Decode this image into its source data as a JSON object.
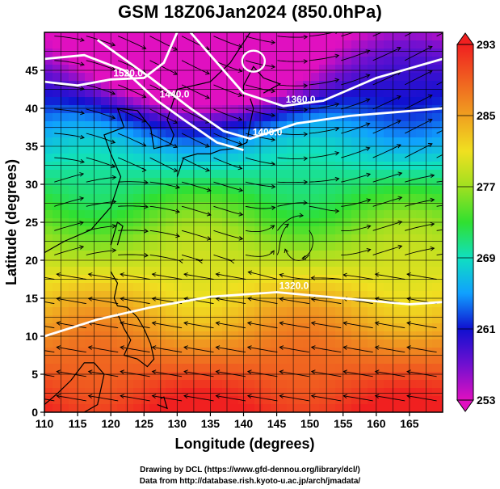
{
  "title": "GSM 18Z06Jan2024 (850.0hPa)",
  "x_axis": {
    "label": "Longitude (degrees)",
    "min": 110,
    "max": 170,
    "ticks": [
      "110",
      "115",
      "120",
      "125",
      "130",
      "135",
      "140",
      "145",
      "150",
      "155",
      "160",
      "165"
    ]
  },
  "y_axis": {
    "label": "Latitude  (degrees)",
    "min": 0,
    "max": 50,
    "ticks": [
      "0",
      "5",
      "10",
      "15",
      "20",
      "25",
      "30",
      "35",
      "40",
      "45"
    ]
  },
  "colorbar": {
    "min": 253,
    "max": 293,
    "labels": [
      "293",
      "285",
      "277",
      "269",
      "261",
      "253"
    ]
  },
  "contours": {
    "labels": [
      "1520.0",
      "1440.0",
      "1400.0",
      "1360.0",
      "1320.0"
    ],
    "series": [
      {
        "name": "1520.0",
        "points": [
          [
            110,
            43.5
          ],
          [
            115,
            43
          ],
          [
            120,
            43.8
          ],
          [
            125,
            44
          ],
          [
            128,
            46
          ],
          [
            130,
            50
          ]
        ]
      },
      {
        "name": "1440.0",
        "points": [
          [
            110,
            46.5
          ],
          [
            116,
            47
          ],
          [
            122,
            45
          ],
          [
            127,
            41
          ],
          [
            131,
            38.5
          ],
          [
            136,
            35.5
          ],
          [
            140,
            34.5
          ]
        ]
      },
      {
        "name": "1400.0",
        "points": [
          [
            118,
            49
          ],
          [
            126,
            44
          ],
          [
            132,
            40
          ],
          [
            137,
            37
          ],
          [
            141,
            36
          ],
          [
            148,
            38
          ],
          [
            156,
            39
          ],
          [
            170,
            40
          ]
        ]
      },
      {
        "name": "1360.0",
        "points": [
          [
            132,
            50
          ],
          [
            136,
            46
          ],
          [
            140,
            42
          ],
          [
            146,
            40.3
          ],
          [
            152,
            41
          ],
          [
            160,
            44
          ],
          [
            170,
            46.5
          ]
        ]
      },
      {
        "name": "1320.0",
        "points": [
          [
            110,
            10
          ],
          [
            118,
            12.2
          ],
          [
            126,
            13.8
          ],
          [
            135,
            15.2
          ],
          [
            145,
            15.8
          ],
          [
            155,
            15
          ],
          [
            165,
            14.2
          ],
          [
            170,
            14.5
          ]
        ]
      }
    ]
  },
  "colors": {
    "colorbar_stops": [
      "#e010c0",
      "#7010d0",
      "#1010d0",
      "#10a0ff",
      "#10e0c0",
      "#30e030",
      "#a0e020",
      "#f0e020",
      "#f0a020",
      "#f06020",
      "#f02020"
    ]
  },
  "credits": {
    "line1": "Drawing by DCL (https://www.gfd-dennou.org/library/dcl/)",
    "line2": "Data from http://database.rish.kyoto-u.ac.jp/arch/jmadata/"
  }
}
